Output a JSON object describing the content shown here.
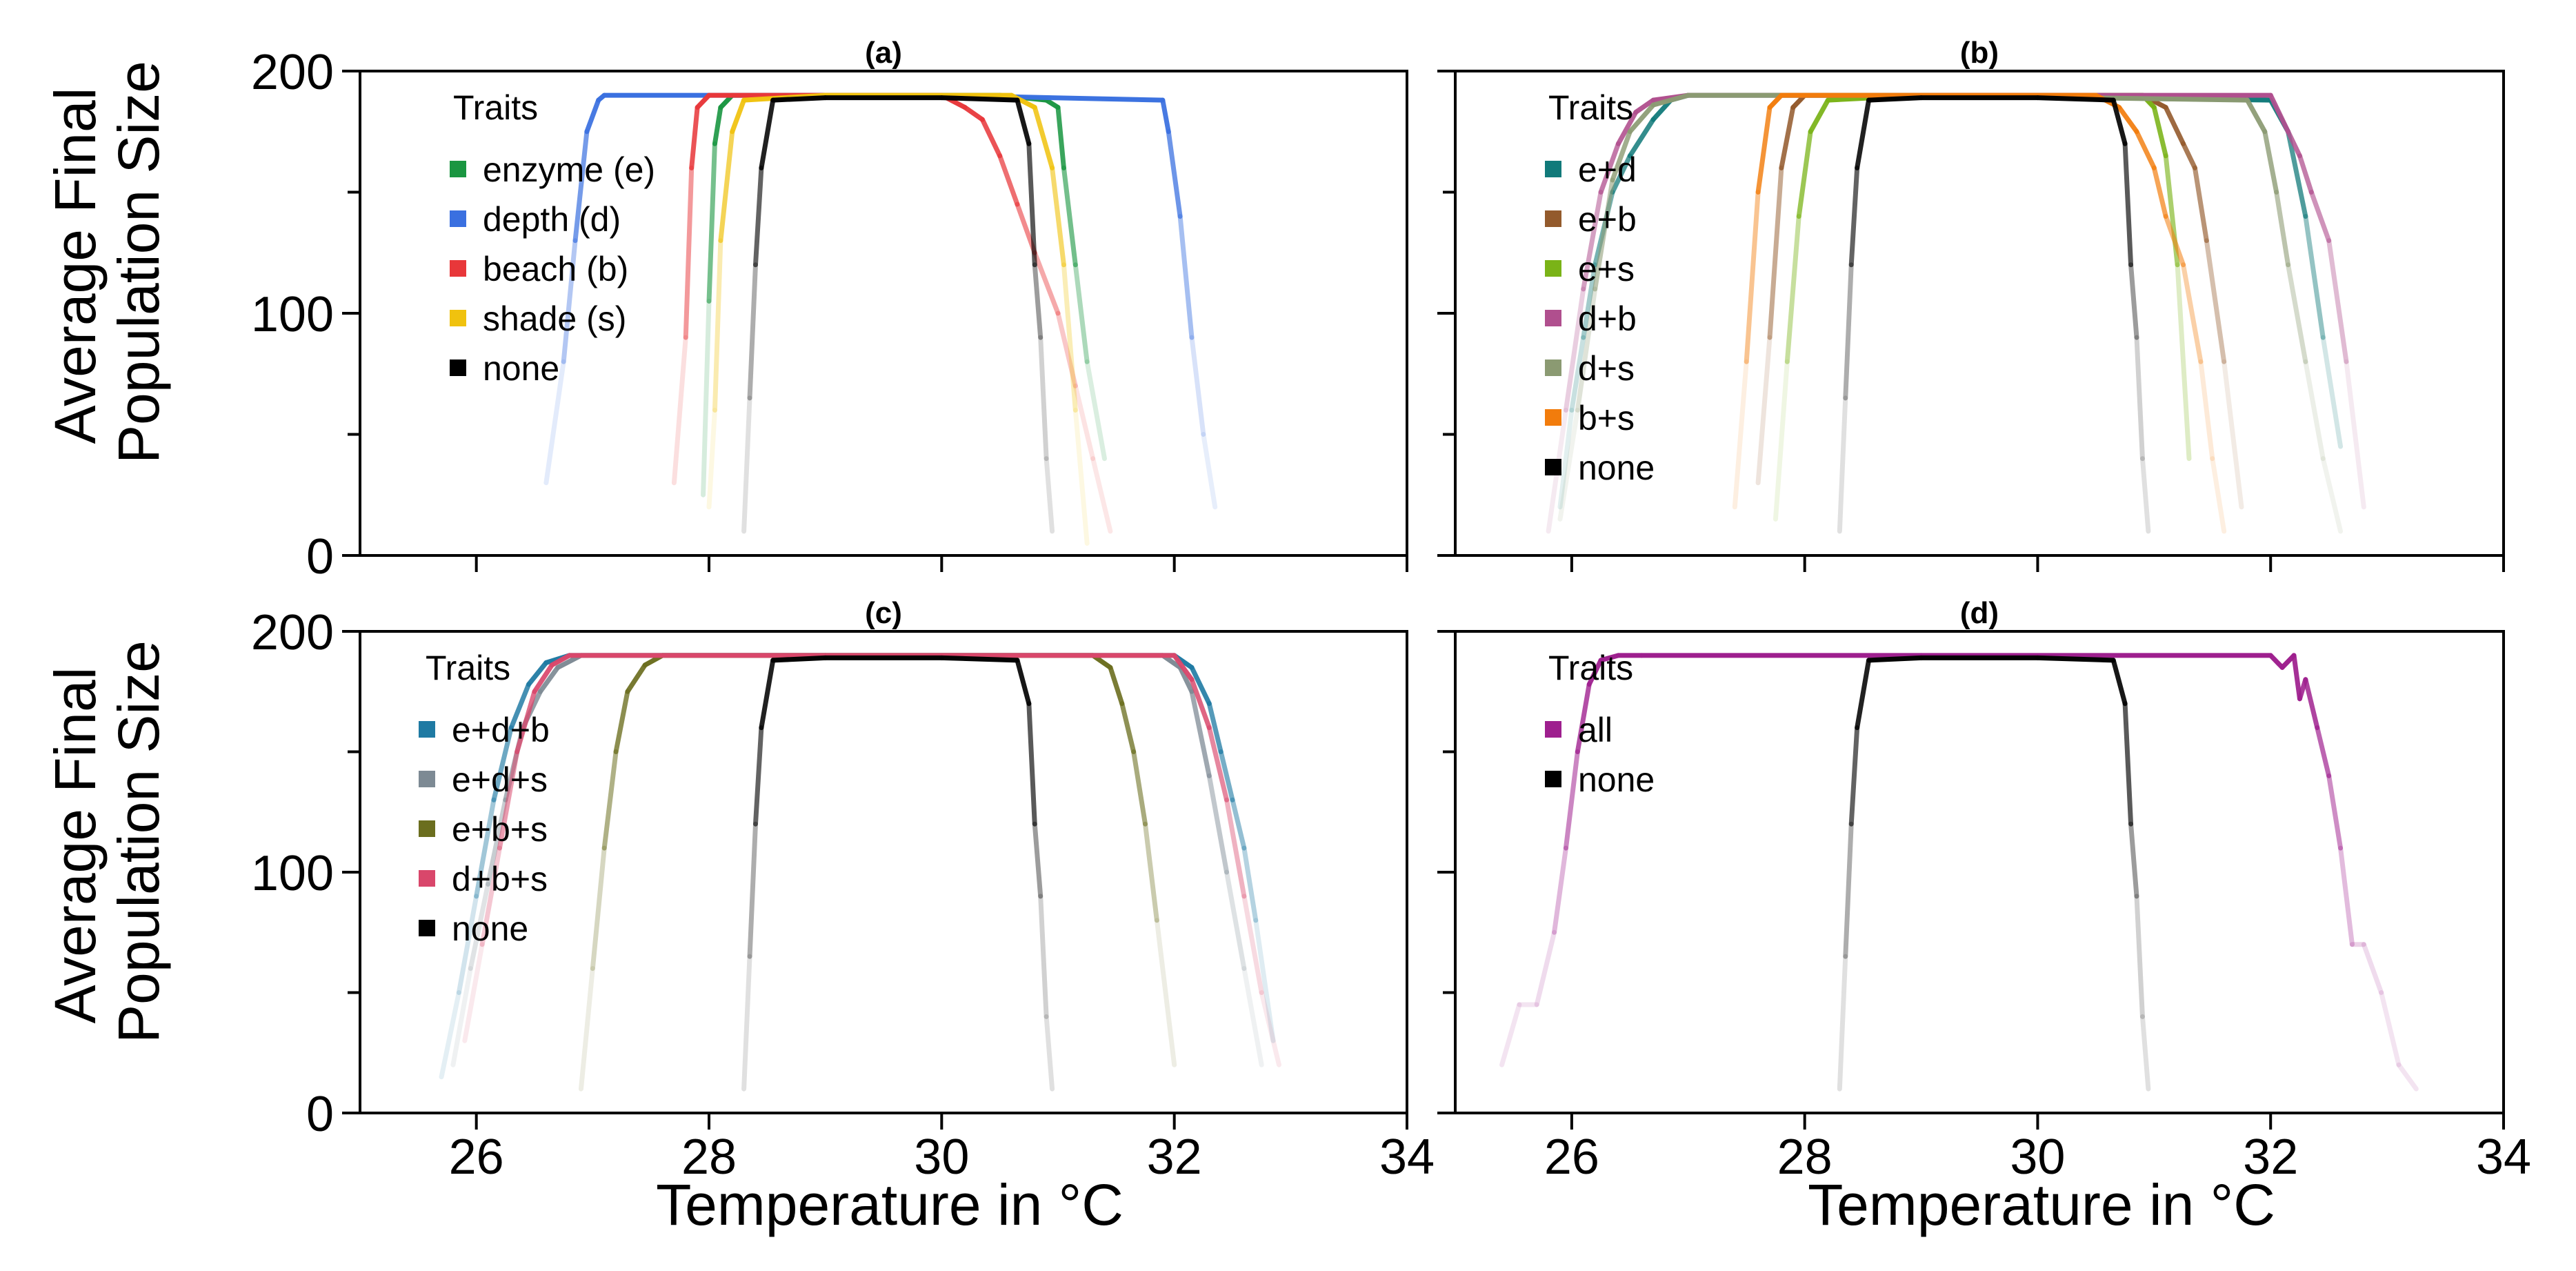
{
  "figure": {
    "y_axis_title_line1": "Average Final",
    "y_axis_title_line2": "Population Size",
    "x_axis_title": "Temperature in °C"
  },
  "chart_data": [
    {
      "type": "line",
      "title": "(a)",
      "xlabel": "Temperature in °C",
      "ylabel": "Average Final Population Size",
      "xlim": [
        25,
        34
      ],
      "ylim": [
        0,
        200
      ],
      "xticks": [
        26,
        28,
        30,
        32,
        34
      ],
      "yticks": [
        0,
        100,
        200
      ],
      "legend_title": "Traits",
      "legend_position": "top-left",
      "series": [
        {
          "name": "enzyme (e)",
          "color": "#1a9641",
          "x": [
            27.95,
            28.0,
            28.05,
            28.1,
            28.2,
            29.0,
            30.5,
            30.9,
            31.0,
            31.05,
            31.15,
            31.25,
            31.4
          ],
          "values": [
            25,
            105,
            170,
            185,
            190,
            190,
            190,
            188,
            185,
            160,
            120,
            80,
            40
          ]
        },
        {
          "name": "depth (d)",
          "color": "#3a70e0",
          "x": [
            26.6,
            26.75,
            26.85,
            26.95,
            27.05,
            27.1,
            28.0,
            30.0,
            31.9,
            31.95,
            32.05,
            32.15,
            32.25,
            32.35
          ],
          "values": [
            30,
            80,
            130,
            175,
            188,
            190,
            190,
            190,
            188,
            175,
            140,
            90,
            50,
            20
          ]
        },
        {
          "name": "beach (b)",
          "color": "#e8373a",
          "x": [
            27.7,
            27.8,
            27.85,
            27.9,
            28.0,
            29.0,
            30.0,
            30.2,
            30.35,
            30.5,
            30.65,
            30.8,
            31.0,
            31.15,
            31.3,
            31.45
          ],
          "values": [
            30,
            90,
            160,
            185,
            190,
            190,
            190,
            185,
            180,
            165,
            145,
            125,
            100,
            70,
            40,
            10
          ]
        },
        {
          "name": "shade (s)",
          "color": "#f0c20e",
          "x": [
            28.0,
            28.05,
            28.1,
            28.2,
            28.3,
            29.0,
            30.6,
            30.8,
            30.95,
            31.05,
            31.15,
            31.25
          ],
          "values": [
            20,
            60,
            130,
            175,
            188,
            190,
            190,
            185,
            160,
            120,
            60,
            5
          ]
        },
        {
          "name": "none",
          "color": "#000000",
          "x": [
            28.3,
            28.35,
            28.4,
            28.45,
            28.55,
            29.0,
            30.0,
            30.65,
            30.75,
            30.8,
            30.85,
            30.9,
            30.95
          ],
          "values": [
            10,
            65,
            120,
            160,
            188,
            189,
            189,
            188,
            170,
            120,
            90,
            40,
            10
          ]
        }
      ]
    },
    {
      "type": "line",
      "title": "(b)",
      "xlabel": "Temperature in °C",
      "ylabel": "Average Final Population Size",
      "xlim": [
        25,
        34
      ],
      "ylim": [
        0,
        200
      ],
      "xticks": [
        26,
        28,
        30,
        32,
        34
      ],
      "yticks": [
        0,
        100,
        200
      ],
      "legend_title": "Traits",
      "legend_position": "top-left",
      "series": [
        {
          "name": "e+d",
          "color": "#117a7a",
          "x": [
            25.9,
            26.0,
            26.1,
            26.2,
            26.35,
            26.5,
            26.7,
            26.85,
            27.0,
            29.0,
            32.0,
            32.15,
            32.3,
            32.45,
            32.6
          ],
          "values": [
            20,
            60,
            90,
            120,
            150,
            165,
            180,
            188,
            190,
            190,
            188,
            175,
            140,
            90,
            45
          ]
        },
        {
          "name": "e+b",
          "color": "#935a2c",
          "x": [
            27.6,
            27.7,
            27.8,
            27.9,
            28.0,
            29.0,
            30.9,
            31.1,
            31.25,
            31.35,
            31.45,
            31.6,
            31.75
          ],
          "values": [
            30,
            90,
            160,
            185,
            190,
            190,
            190,
            185,
            170,
            160,
            130,
            80,
            20
          ]
        },
        {
          "name": "e+s",
          "color": "#7ab317",
          "x": [
            27.75,
            27.85,
            27.95,
            28.05,
            28.2,
            29.0,
            30.9,
            31.0,
            31.1,
            31.2,
            31.3
          ],
          "values": [
            15,
            80,
            140,
            175,
            188,
            190,
            190,
            185,
            165,
            120,
            40
          ]
        },
        {
          "name": "d+b",
          "color": "#b04f8e",
          "x": [
            25.8,
            25.95,
            26.1,
            26.25,
            26.4,
            26.55,
            26.7,
            27.0,
            29.0,
            32.0,
            32.15,
            32.25,
            32.35,
            32.5,
            32.65,
            32.8
          ],
          "values": [
            10,
            60,
            110,
            150,
            170,
            183,
            188,
            190,
            190,
            190,
            175,
            165,
            150,
            130,
            80,
            20
          ]
        },
        {
          "name": "d+s",
          "color": "#8b9a72",
          "x": [
            25.9,
            26.05,
            26.2,
            26.35,
            26.5,
            26.7,
            27.0,
            29.0,
            31.8,
            31.95,
            32.05,
            32.15,
            32.3,
            32.45,
            32.6
          ],
          "values": [
            15,
            60,
            110,
            155,
            175,
            186,
            190,
            190,
            188,
            175,
            150,
            120,
            80,
            40,
            10
          ]
        },
        {
          "name": "b+s",
          "color": "#f27c0c",
          "x": [
            27.4,
            27.5,
            27.6,
            27.7,
            27.8,
            29.0,
            30.5,
            30.7,
            30.85,
            31.0,
            31.1,
            31.25,
            31.4,
            31.5,
            31.6
          ],
          "values": [
            20,
            80,
            150,
            185,
            190,
            190,
            190,
            185,
            175,
            160,
            140,
            120,
            80,
            40,
            10
          ]
        },
        {
          "name": "none",
          "color": "#000000",
          "x": [
            28.3,
            28.35,
            28.4,
            28.45,
            28.55,
            29.0,
            30.0,
            30.65,
            30.75,
            30.8,
            30.85,
            30.9,
            30.95
          ],
          "values": [
            10,
            65,
            120,
            160,
            188,
            189,
            189,
            188,
            170,
            120,
            90,
            40,
            10
          ]
        }
      ]
    },
    {
      "type": "line",
      "title": "(c)",
      "xlabel": "Temperature in °C",
      "ylabel": "Average Final Population Size",
      "xlim": [
        25,
        34
      ],
      "ylim": [
        0,
        200
      ],
      "xticks": [
        26,
        28,
        30,
        32,
        34
      ],
      "yticks": [
        0,
        100,
        200
      ],
      "legend_title": "Traits",
      "legend_position": "top-left",
      "series": [
        {
          "name": "e+d+b",
          "color": "#1f7aa3",
          "x": [
            25.7,
            25.85,
            26.0,
            26.15,
            26.3,
            26.45,
            26.6,
            26.8,
            29.0,
            32.0,
            32.15,
            32.3,
            32.4,
            32.5,
            32.6,
            32.7,
            32.85
          ],
          "values": [
            15,
            50,
            90,
            130,
            160,
            178,
            187,
            190,
            190,
            190,
            185,
            170,
            150,
            130,
            110,
            80,
            30
          ]
        },
        {
          "name": "e+d+s",
          "color": "#7d8a94",
          "x": [
            25.8,
            25.95,
            26.1,
            26.25,
            26.4,
            26.55,
            26.7,
            26.9,
            29.0,
            31.9,
            32.05,
            32.15,
            32.3,
            32.45,
            32.6,
            32.75
          ],
          "values": [
            20,
            60,
            95,
            130,
            160,
            175,
            185,
            190,
            190,
            190,
            185,
            175,
            140,
            100,
            60,
            20
          ]
        },
        {
          "name": "e+b+s",
          "color": "#6b6e1f",
          "x": [
            26.9,
            27.0,
            27.1,
            27.2,
            27.3,
            27.45,
            27.6,
            29.0,
            31.3,
            31.45,
            31.55,
            31.65,
            31.75,
            31.85,
            32.0
          ],
          "values": [
            10,
            60,
            110,
            150,
            175,
            186,
            190,
            190,
            190,
            185,
            170,
            150,
            120,
            80,
            20
          ]
        },
        {
          "name": "d+b+s",
          "color": "#d9476b",
          "x": [
            25.9,
            26.05,
            26.2,
            26.35,
            26.5,
            26.65,
            26.8,
            29.0,
            32.0,
            32.15,
            32.3,
            32.45,
            32.6,
            32.75,
            32.9
          ],
          "values": [
            30,
            70,
            110,
            150,
            175,
            186,
            190,
            190,
            190,
            180,
            160,
            130,
            90,
            50,
            20
          ]
        },
        {
          "name": "none",
          "color": "#000000",
          "x": [
            28.3,
            28.35,
            28.4,
            28.45,
            28.55,
            29.0,
            30.0,
            30.65,
            30.75,
            30.8,
            30.85,
            30.9,
            30.95
          ],
          "values": [
            10,
            65,
            120,
            160,
            188,
            189,
            189,
            188,
            170,
            120,
            90,
            40,
            10
          ]
        }
      ]
    },
    {
      "type": "line",
      "title": "(d)",
      "xlabel": "Temperature in °C",
      "ylabel": "Average Final Population Size",
      "xlim": [
        25,
        34
      ],
      "ylim": [
        0,
        200
      ],
      "xticks": [
        26,
        28,
        30,
        32,
        34
      ],
      "yticks": [
        0,
        100,
        200
      ],
      "legend_title": "Traits",
      "legend_position": "top-left",
      "series": [
        {
          "name": "all",
          "color": "#9e1f8e",
          "x": [
            25.4,
            25.55,
            25.7,
            25.85,
            25.95,
            26.05,
            26.15,
            26.25,
            26.4,
            26.6,
            29.0,
            32.0,
            32.1,
            32.2,
            32.25,
            32.3,
            32.4,
            32.5,
            32.6,
            32.7,
            32.8,
            32.95,
            33.1,
            33.25
          ],
          "values": [
            20,
            45,
            45,
            75,
            110,
            150,
            178,
            188,
            190,
            190,
            190,
            190,
            185,
            190,
            172,
            180,
            160,
            140,
            110,
            70,
            70,
            50,
            20,
            10
          ]
        },
        {
          "name": "none",
          "color": "#000000",
          "x": [
            28.3,
            28.35,
            28.4,
            28.45,
            28.55,
            29.0,
            30.0,
            30.65,
            30.75,
            30.8,
            30.85,
            30.9,
            30.95
          ],
          "values": [
            10,
            65,
            120,
            160,
            188,
            189,
            189,
            188,
            170,
            120,
            90,
            40,
            10
          ]
        }
      ]
    }
  ]
}
